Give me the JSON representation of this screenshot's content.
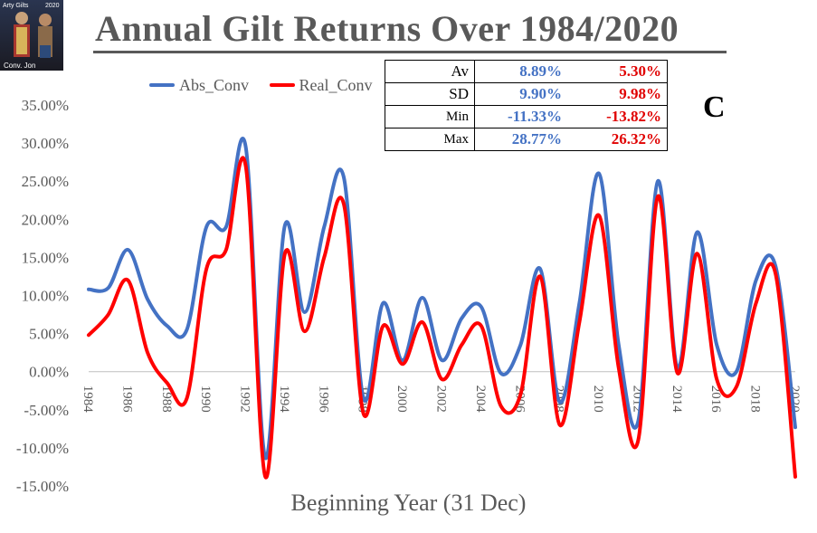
{
  "title": "Annual Gilt Returns Over 1984/2020",
  "legend": [
    {
      "label": "Abs_Conv",
      "color": "#4472c4"
    },
    {
      "label": "Real_Conv",
      "color": "#ff0000"
    }
  ],
  "stats_table": {
    "rows": [
      {
        "label": "Av",
        "abs": "8.89%",
        "real": "5.30%"
      },
      {
        "label": "SD",
        "abs": "9.90%",
        "real": "9.98%"
      },
      {
        "label": "Min",
        "abs": "-11.33%",
        "real": "-13.82%"
      },
      {
        "label": "Max",
        "abs": "28.77%",
        "real": "26.32%"
      }
    ]
  },
  "badge": "C",
  "logo": {
    "icon": "portrait-thumbnail-icon",
    "text_top": "Arty Gilts",
    "text_year": "2020",
    "text_bottom": "Conv. Jon"
  },
  "chart_data": {
    "type": "line",
    "title": "Annual Gilt Returns Over 1984/2020",
    "xlabel": "Beginning Year (31 Dec)",
    "ylabel": "",
    "x": [
      1984,
      1985,
      1986,
      1987,
      1988,
      1989,
      1990,
      1991,
      1992,
      1993,
      1994,
      1995,
      1996,
      1997,
      1998,
      1999,
      2000,
      2001,
      2002,
      2003,
      2004,
      2005,
      2006,
      2007,
      2008,
      2009,
      2010,
      2011,
      2012,
      2013,
      2014,
      2015,
      2016,
      2017,
      2018,
      2019,
      2020
    ],
    "x_tick_labels": [
      "1984",
      "1986",
      "1988",
      "1990",
      "1992",
      "1994",
      "1996",
      "1998",
      "2000",
      "2002",
      "2004",
      "2006",
      "2008",
      "2010",
      "2012",
      "2014",
      "2016",
      "2018",
      "2020"
    ],
    "ylim": [
      -15,
      35
    ],
    "y_tick_labels": [
      "35.00%",
      "30.00%",
      "25.00%",
      "20.00%",
      "15.00%",
      "10.00%",
      "5.00%",
      "0.00%",
      "-5.00%",
      "-10.00%",
      "-15.00%"
    ],
    "y_ticks": [
      35,
      30,
      25,
      20,
      15,
      10,
      5,
      0,
      -5,
      -10,
      -15
    ],
    "grid": false,
    "legend_position": "top-left",
    "series": [
      {
        "name": "Abs_Conv",
        "color": "#4472c4",
        "values": [
          10.8,
          11.0,
          16.0,
          9.5,
          6.0,
          5.5,
          19.0,
          19.0,
          29.5,
          -11.3,
          19.2,
          7.8,
          19.0,
          25.5,
          -3.5,
          9.0,
          1.5,
          9.7,
          1.5,
          7.0,
          8.5,
          -0.2,
          3.5,
          13.5,
          -4.0,
          9.0,
          26.0,
          3.5,
          -6.5,
          25.0,
          0.5,
          18.3,
          3.5,
          0.0,
          12.0,
          13.8,
          -7.3
        ]
      },
      {
        "name": "Real_Conv",
        "color": "#ff0000",
        "values": [
          4.8,
          7.5,
          12.0,
          2.5,
          -1.5,
          -3.5,
          13.5,
          16.0,
          27.0,
          -13.8,
          15.5,
          5.3,
          15.0,
          22.0,
          -5.5,
          6.0,
          1.0,
          6.5,
          -1.0,
          3.5,
          6.0,
          -4.5,
          -3.0,
          12.5,
          -7.0,
          6.5,
          20.5,
          0.5,
          -9.0,
          23.0,
          -0.2,
          15.5,
          -1.0,
          -2.0,
          9.0,
          12.8,
          -13.8
        ]
      }
    ]
  }
}
